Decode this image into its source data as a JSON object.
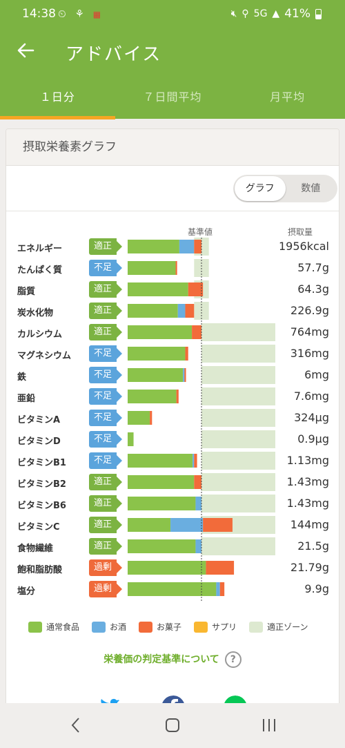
{
  "status": {
    "time": "14:38",
    "signal": "5G",
    "battery": "41%"
  },
  "appbar": {
    "title": "アドバイス"
  },
  "tabs": [
    {
      "label": "１日分",
      "active": true
    },
    {
      "label": "７日間平均",
      "active": false
    },
    {
      "label": "月平均",
      "active": false
    }
  ],
  "card": {
    "title": "摂取栄養素グラフ"
  },
  "toggle": {
    "graph_label": "グラフ",
    "numeric_label": "数値",
    "selected": "グラフ"
  },
  "chart_headers": {
    "standard": "基準値",
    "intake": "摂取量"
  },
  "colors": {
    "normal_food": "#8bc34a",
    "alcohol": "#6aaee0",
    "snack": "#f26b3a",
    "supplement": "#f9b731",
    "zone": "#dde9d0",
    "ok": "#7cb342",
    "low": "#5ba4dc",
    "high": "#ef6a3a"
  },
  "chart_data": {
    "type": "bar",
    "stacked": true,
    "scale": "percent of standard value",
    "standard_line": 100,
    "series": [
      {
        "name": "通常食品",
        "key": "food"
      },
      {
        "name": "お酒",
        "key": "alcohol"
      },
      {
        "name": "お菓子",
        "key": "snack"
      },
      {
        "name": "サプリ",
        "key": "supplement"
      }
    ],
    "rows": [
      {
        "name": "エネルギー",
        "judgement": "適正",
        "status": "ok",
        "value": "1956kcal",
        "food": 70,
        "alcohol": 20,
        "snack": 10,
        "supplement": 0,
        "zone": [
          90,
          110
        ]
      },
      {
        "name": "たんぱく質",
        "judgement": "不足",
        "status": "low",
        "value": "57.7g",
        "food": 65,
        "alcohol": 0,
        "snack": 2,
        "supplement": 0,
        "zone": [
          90,
          110
        ]
      },
      {
        "name": "脂質",
        "judgement": "適正",
        "status": "ok",
        "value": "64.3g",
        "food": 82,
        "alcohol": 0,
        "snack": 20,
        "supplement": 0,
        "zone": [
          90,
          110
        ]
      },
      {
        "name": "炭水化物",
        "judgement": "適正",
        "status": "ok",
        "value": "226.9g",
        "food": 68,
        "alcohol": 10,
        "snack": 12,
        "supplement": 0,
        "zone": [
          90,
          110
        ]
      },
      {
        "name": "カルシウム",
        "judgement": "適正",
        "status": "ok",
        "value": "764mg",
        "food": 87,
        "alcohol": 0,
        "snack": 13,
        "supplement": 0,
        "zone": [
          100,
          200
        ]
      },
      {
        "name": "マグネシウム",
        "judgement": "不足",
        "status": "low",
        "value": "316mg",
        "food": 78,
        "alcohol": 0,
        "snack": 4,
        "supplement": 0,
        "zone": [
          100,
          200
        ]
      },
      {
        "name": "鉄",
        "judgement": "不足",
        "status": "low",
        "value": "6mg",
        "food": 75,
        "alcohol": 2,
        "snack": 2,
        "supplement": 0,
        "zone": [
          100,
          200
        ]
      },
      {
        "name": "亜鉛",
        "judgement": "不足",
        "status": "low",
        "value": "7.6mg",
        "food": 66,
        "alcohol": 0,
        "snack": 3,
        "supplement": 0,
        "zone": [
          100,
          200
        ]
      },
      {
        "name": "ビタミンA",
        "judgement": "不足",
        "status": "low",
        "value": "324μg",
        "food": 30,
        "alcohol": 0,
        "snack": 3,
        "supplement": 0,
        "zone": [
          100,
          200
        ]
      },
      {
        "name": "ビタミンD",
        "judgement": "不足",
        "status": "low",
        "value": "0.9μg",
        "food": 8,
        "alcohol": 0,
        "snack": 0,
        "supplement": 0,
        "zone": [
          100,
          200
        ]
      },
      {
        "name": "ビタミンB1",
        "judgement": "不足",
        "status": "low",
        "value": "1.13mg",
        "food": 88,
        "alcohol": 2,
        "snack": 4,
        "supplement": 0,
        "zone": [
          100,
          200
        ]
      },
      {
        "name": "ビタミンB2",
        "judgement": "適正",
        "status": "ok",
        "value": "1.43mg",
        "food": 90,
        "alcohol": 0,
        "snack": 10,
        "supplement": 0,
        "zone": [
          100,
          200
        ]
      },
      {
        "name": "ビタミンB6",
        "judgement": "適正",
        "status": "ok",
        "value": "1.43mg",
        "food": 92,
        "alcohol": 8,
        "snack": 0,
        "supplement": 0,
        "zone": [
          100,
          200
        ]
      },
      {
        "name": "ビタミンC",
        "judgement": "適正",
        "status": "ok",
        "value": "144mg",
        "food": 58,
        "alcohol": 44,
        "snack": 40,
        "supplement": 0,
        "zone": [
          100,
          200
        ]
      },
      {
        "name": "食物繊維",
        "judgement": "適正",
        "status": "ok",
        "value": "21.5g",
        "food": 92,
        "alcohol": 8,
        "snack": 0,
        "supplement": 0,
        "zone": [
          100,
          200
        ]
      },
      {
        "name": "飽和脂肪酸",
        "judgement": "過剰",
        "status": "high",
        "value": "21.79g",
        "food": 106,
        "alcohol": 0,
        "snack": 38,
        "supplement": 0,
        "zone": null
      },
      {
        "name": "塩分",
        "judgement": "過剰",
        "status": "high",
        "value": "9.9g",
        "food": 120,
        "alcohol": 5,
        "snack": 6,
        "supplement": 0,
        "zone": null
      }
    ]
  },
  "legend": [
    {
      "label": "通常食品",
      "color": "#8bc34a"
    },
    {
      "label": "お酒",
      "color": "#6aaee0"
    },
    {
      "label": "お菓子",
      "color": "#f26b3a"
    },
    {
      "label": "サプリ",
      "color": "#f9b731"
    },
    {
      "label": "適正ゾーン",
      "color": "#dde9d0"
    }
  ],
  "criteria_link": {
    "label": "栄養価の判定基準について",
    "help": "?"
  }
}
